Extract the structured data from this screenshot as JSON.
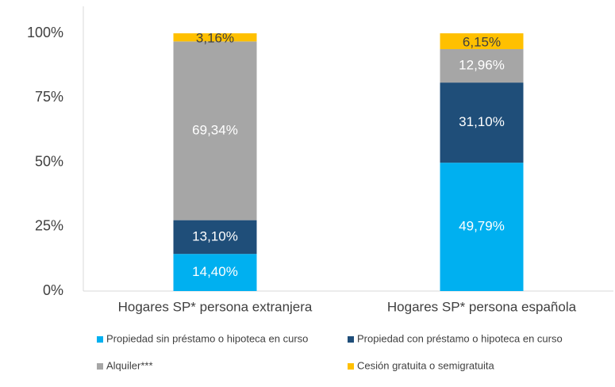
{
  "chart_data": {
    "type": "stacked_bar",
    "categories": [
      "Hogares SP* persona extranjera",
      "Hogares SP* persona española"
    ],
    "series": [
      {
        "name": "Propiedad sin préstamo o hipoteca en curso",
        "color": "#00b0f0",
        "values": [
          14.4,
          49.79
        ],
        "value_labels": [
          "14,40%",
          "49,79%"
        ]
      },
      {
        "name": "Propiedad con préstamo o hipoteca en curso",
        "color": "#1f4e79",
        "values": [
          13.1,
          31.1
        ],
        "value_labels": [
          "13,10%",
          "31,10%"
        ]
      },
      {
        "name": "Alquiler***",
        "color": "#a6a6a6",
        "values": [
          69.34,
          12.96
        ],
        "value_labels": [
          "69,34%",
          "12,96%"
        ]
      },
      {
        "name": "Cesión gratuita o semigratuita",
        "color": "#ffc000",
        "values": [
          3.16,
          6.15
        ],
        "value_labels": [
          "3,16%",
          "6,15%"
        ]
      }
    ],
    "ylim": [
      0,
      100
    ],
    "yticks": [
      {
        "value": 0,
        "label": "0%"
      },
      {
        "value": 25,
        "label": "25%"
      },
      {
        "value": 50,
        "label": "50%"
      },
      {
        "value": 75,
        "label": "75%"
      },
      {
        "value": 100,
        "label": "100%"
      }
    ],
    "grid": false,
    "legend": "bottom"
  }
}
